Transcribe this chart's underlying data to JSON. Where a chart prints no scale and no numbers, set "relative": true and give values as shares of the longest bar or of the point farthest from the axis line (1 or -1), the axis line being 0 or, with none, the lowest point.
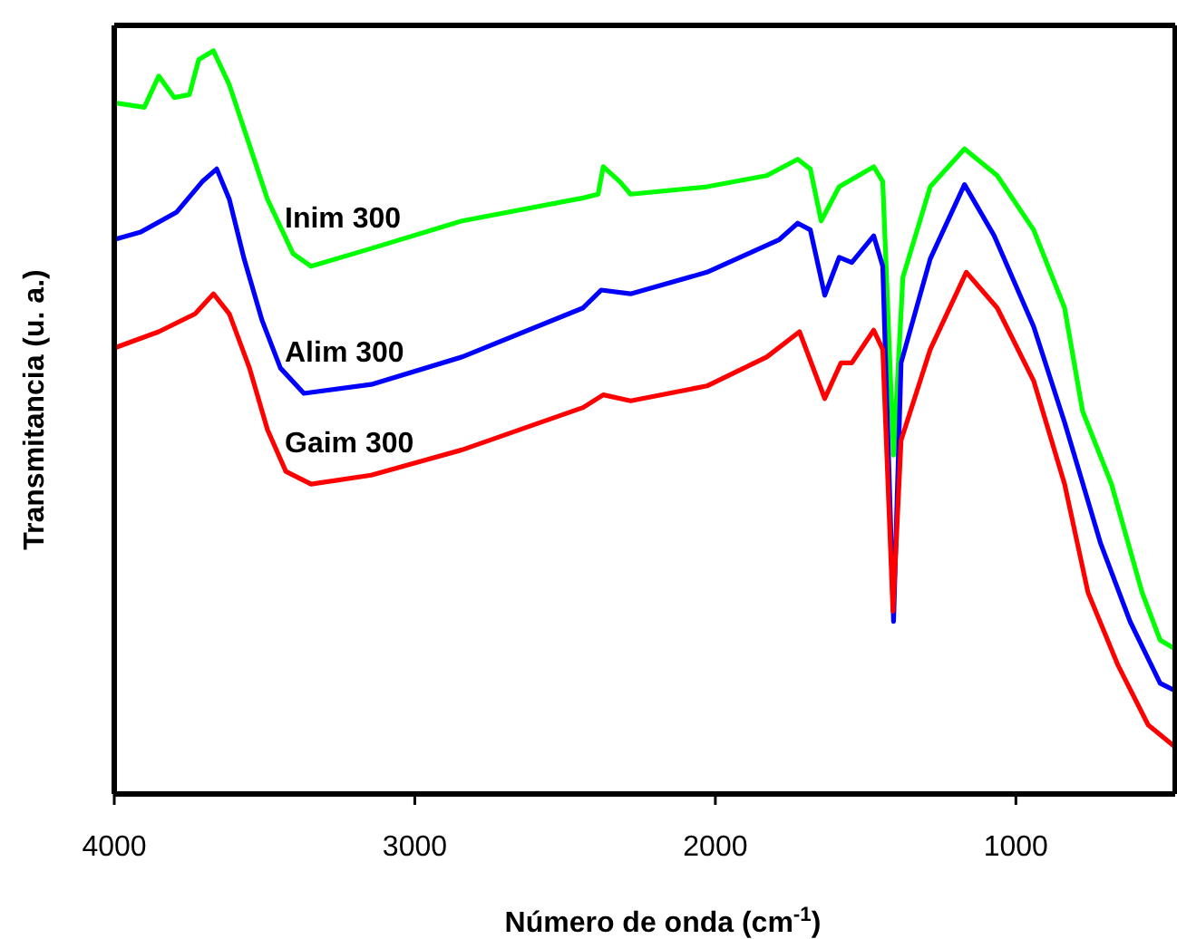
{
  "chart_data": {
    "type": "line",
    "relative": true,
    "xlabel": "Número de onda (cm$^{-1}$)",
    "ylabel": "Transmitancia (u. a.)",
    "xlim": [
      4000,
      470
    ],
    "xticks": [
      4000,
      3000,
      2000,
      1000
    ],
    "series": [
      {
        "name": "Inim 300",
        "color": "#00ff00",
        "x": [
          4000,
          3900,
          3852,
          3800,
          3750,
          3719,
          3670,
          3617,
          3550,
          3490,
          3405,
          3345,
          3145,
          2843,
          2440,
          2390,
          2373,
          2318,
          2282,
          2028,
          1829,
          1726,
          1684,
          1648,
          1588,
          1473,
          1443,
          1407,
          1376,
          1285,
          1171,
          1062,
          941,
          838,
          778,
          682,
          580,
          520,
          470
        ],
        "values": [
          0.93,
          0.924,
          0.966,
          0.937,
          0.941,
          0.988,
          1.0,
          0.954,
          0.873,
          0.8,
          0.727,
          0.71,
          0.734,
          0.771,
          0.802,
          0.807,
          0.844,
          0.824,
          0.807,
          0.817,
          0.832,
          0.854,
          0.841,
          0.771,
          0.817,
          0.844,
          0.824,
          0.456,
          0.695,
          0.817,
          0.868,
          0.832,
          0.759,
          0.654,
          0.515,
          0.417,
          0.271,
          0.207,
          0.195
        ]
      },
      {
        "name": "Alim 300",
        "color": "#0000ff",
        "x": [
          4000,
          3912,
          3792,
          3707,
          3659,
          3617,
          3568,
          3508,
          3447,
          3369,
          3145,
          2843,
          2440,
          2380,
          2282,
          2028,
          1787,
          1726,
          1684,
          1636,
          1588,
          1546,
          1473,
          1443,
          1407,
          1382,
          1285,
          1171,
          1072,
          941,
          838,
          718,
          620,
          520,
          470
        ],
        "values": [
          0.746,
          0.756,
          0.783,
          0.824,
          0.841,
          0.8,
          0.72,
          0.637,
          0.573,
          0.539,
          0.551,
          0.588,
          0.654,
          0.678,
          0.673,
          0.702,
          0.746,
          0.768,
          0.759,
          0.671,
          0.722,
          0.715,
          0.751,
          0.71,
          0.232,
          0.58,
          0.72,
          0.82,
          0.751,
          0.629,
          0.5,
          0.337,
          0.232,
          0.149,
          0.139
        ]
      },
      {
        "name": "Gaim 300",
        "color": "#ff0000",
        "x": [
          4000,
          3852,
          3731,
          3670,
          3617,
          3550,
          3490,
          3429,
          3345,
          3145,
          2843,
          2440,
          2373,
          2282,
          2028,
          1829,
          1720,
          1636,
          1582,
          1546,
          1473,
          1443,
          1409,
          1382,
          1285,
          1165,
          1062,
          941,
          838,
          760,
          660,
          560,
          470
        ],
        "values": [
          0.6,
          0.622,
          0.646,
          0.673,
          0.646,
          0.573,
          0.49,
          0.434,
          0.417,
          0.429,
          0.463,
          0.52,
          0.537,
          0.529,
          0.549,
          0.588,
          0.622,
          0.532,
          0.58,
          0.58,
          0.624,
          0.598,
          0.246,
          0.476,
          0.598,
          0.702,
          0.654,
          0.556,
          0.417,
          0.271,
          0.173,
          0.093,
          0.063
        ]
      }
    ]
  }
}
